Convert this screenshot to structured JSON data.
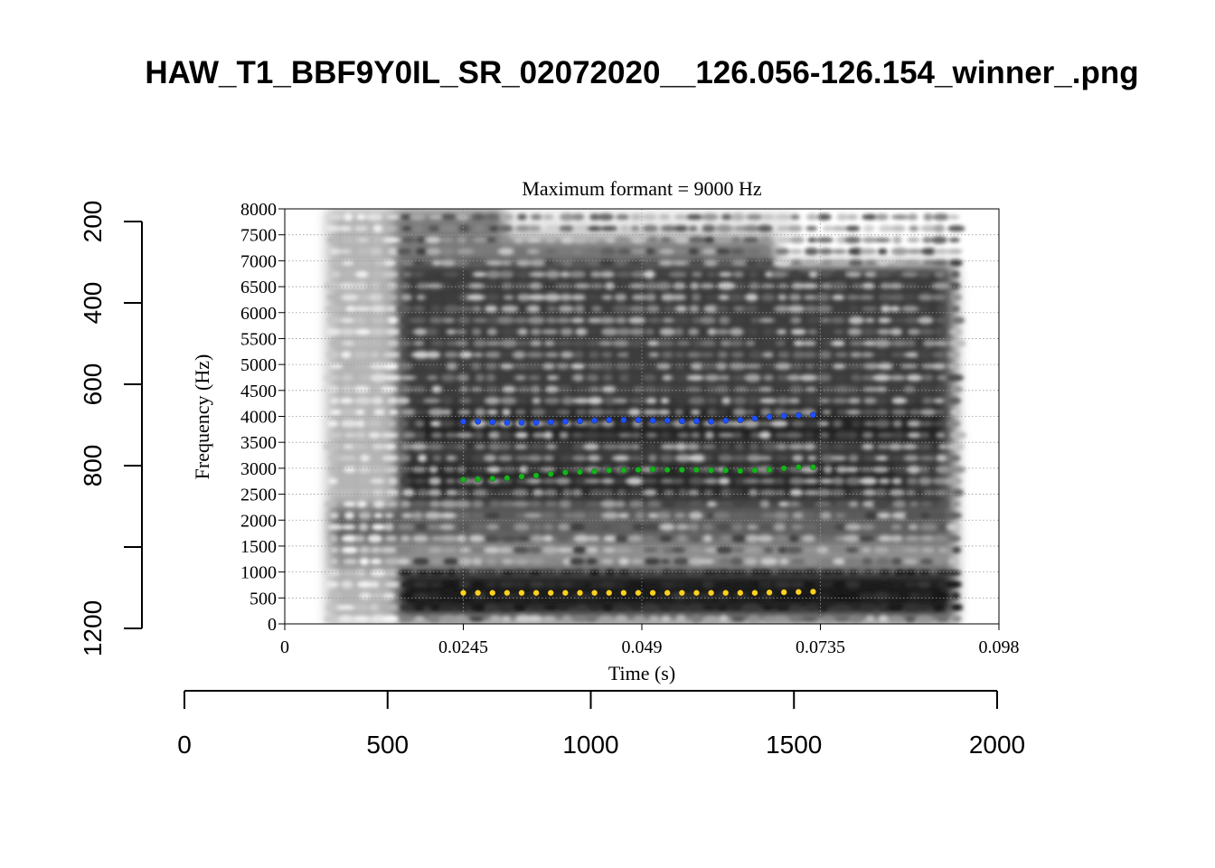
{
  "page_title": "HAW_T1_BBF9Y0IL_SR_02072020__126.056-126.154_winner_.png",
  "chart_data": {
    "type": "scatter",
    "title": "Maximum formant  =  9000 Hz",
    "xlabel": "Time (s)",
    "ylabel": "Frequency (Hz)",
    "xlim": [
      0,
      0.098
    ],
    "ylim": [
      0,
      8000
    ],
    "x_ticks": [
      "0",
      "0.0245",
      "0.049",
      "0.0735",
      "0.098"
    ],
    "x_tick_values": [
      0,
      0.0245,
      0.049,
      0.0735,
      0.098
    ],
    "y_ticks": [
      "0",
      "500",
      "1000",
      "1500",
      "2000",
      "2500",
      "3000",
      "3500",
      "4000",
      "4500",
      "5000",
      "5500",
      "6000",
      "6500",
      "7000",
      "7500",
      "8000"
    ],
    "grid": true,
    "background": "grayscale spectrogram",
    "x": [
      0.0245,
      0.0265,
      0.0285,
      0.0305,
      0.0325,
      0.0345,
      0.0365,
      0.0385,
      0.0405,
      0.0425,
      0.0445,
      0.0465,
      0.0485,
      0.0505,
      0.0525,
      0.0545,
      0.0565,
      0.0585,
      0.0605,
      0.0625,
      0.0645,
      0.0665,
      0.0685,
      0.0705,
      0.0725
    ],
    "series": [
      {
        "color": "#ffd21f",
        "values": [
          598,
          598,
          598,
          598,
          598,
          598,
          598,
          598,
          598,
          598,
          598,
          598,
          598,
          598,
          598,
          598,
          598,
          598,
          598,
          598,
          598,
          605,
          610,
          615,
          620
        ]
      },
      {
        "color": "#16b31b",
        "values": [
          2780,
          2790,
          2800,
          2810,
          2840,
          2860,
          2890,
          2920,
          2930,
          2940,
          2960,
          2960,
          2970,
          2980,
          2970,
          2970,
          2970,
          2960,
          2960,
          2950,
          2960,
          2970,
          3000,
          3020,
          3020
        ]
      },
      {
        "color": "#1e4fff",
        "values": [
          3900,
          3900,
          3890,
          3880,
          3880,
          3880,
          3890,
          3900,
          3910,
          3920,
          3930,
          3930,
          3930,
          3920,
          3920,
          3910,
          3910,
          3900,
          3920,
          3930,
          3960,
          3990,
          4010,
          4020,
          4030
        ]
      }
    ]
  },
  "outer_axes": {
    "left_ticks": [
      "200",
      "400",
      "600",
      "800",
      "",
      "1200"
    ],
    "bottom_ticks": [
      "0",
      "500",
      "1000",
      "1500",
      "2000"
    ]
  }
}
